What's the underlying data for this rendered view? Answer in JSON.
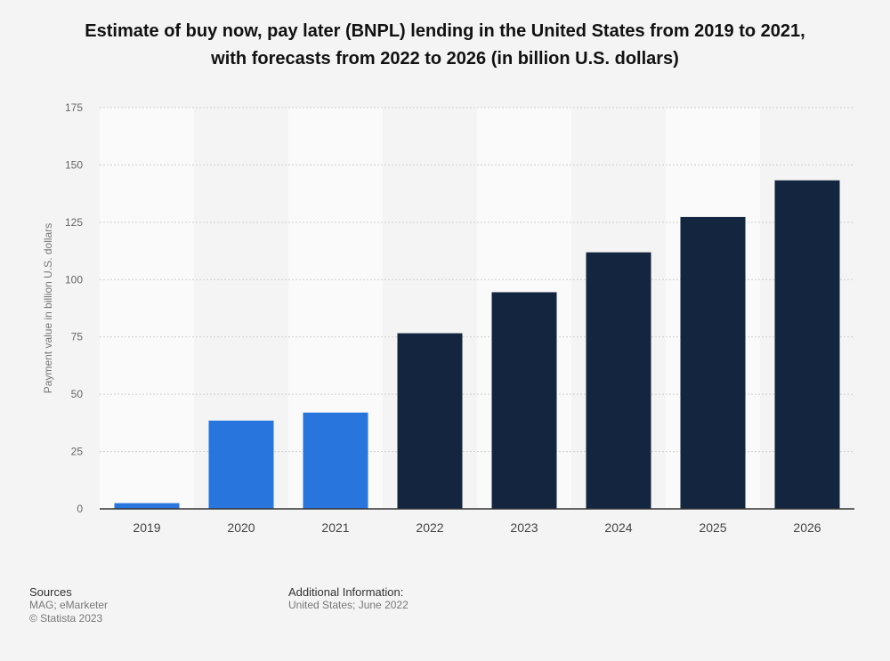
{
  "title_line1": "Estimate of buy now, pay later (BNPL) lending in the United States from 2019 to 2021,",
  "title_line2": "with forecasts from 2022 to 2026 (in billion U.S. dollars)",
  "colors": {
    "actual": "#2876dd",
    "forecast": "#13253f",
    "band_light": "#fafafa",
    "band_dark": "#f4f4f4",
    "grid": "#d0d0d0",
    "axis": "#333333",
    "tick_text": "#666666"
  },
  "footer": {
    "sources_label": "Sources",
    "sources_value": "MAG; eMarketer",
    "copyright": "© Statista 2023",
    "additional_label": "Additional Information:",
    "additional_value": "United States; June 2022"
  },
  "chart_data": {
    "type": "bar",
    "categories": [
      "2019",
      "2020",
      "2021",
      "2022",
      "2023",
      "2024",
      "2025",
      "2026"
    ],
    "values": [
      2.5,
      38.5,
      42,
      76.6,
      94.5,
      111.9,
      127.3,
      143.3
    ],
    "bar_kind": [
      "actual",
      "actual",
      "actual",
      "forecast",
      "forecast",
      "forecast",
      "forecast",
      "forecast"
    ],
    "ylabel": "Payment value in billion U.S. dollars",
    "xlabel": "",
    "ylim": [
      0,
      175
    ],
    "yticks": [
      0,
      25,
      50,
      75,
      100,
      125,
      150,
      175
    ],
    "ytick_labels": [
      "0",
      "25",
      "50",
      "75",
      "100",
      "125",
      "150",
      "175"
    ],
    "grid": true,
    "legend": "none"
  }
}
